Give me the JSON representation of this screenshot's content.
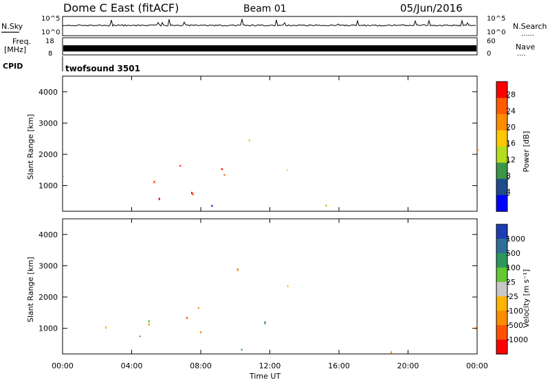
{
  "header": {
    "title": "Dome C East (fitACF)",
    "beam": "Beam 01",
    "date": "05/Jun/2016"
  },
  "status_panels": {
    "nsky_label": "N.Sky",
    "nsearch_label": "N.Search",
    "power_ticks": [
      "10^5",
      "10^0"
    ],
    "freq_label_1": "Freq.",
    "freq_label_2": "[MHz]",
    "freq_ticks": [
      "18",
      "8"
    ],
    "nave_label": "Nave",
    "nave_ticks": [
      "60",
      "0"
    ],
    "cpid_label": "CPID",
    "cpid_value": "twofsound 3501",
    "dots": "......",
    "dots_short": "...."
  },
  "chart_data": [
    {
      "type": "heatmap",
      "name": "power",
      "ylabel": "Slant Range [km]",
      "yticks": [
        "4000",
        "3000",
        "2000",
        "1000"
      ],
      "ylim": [
        180,
        4500
      ],
      "xlim": [
        0,
        24
      ],
      "colorbar": {
        "label": "Power [dB]",
        "ticks": [
          "28",
          "24",
          "20",
          "16",
          "12",
          "8",
          "4"
        ],
        "colors": [
          "#ff0000",
          "#ff5a00",
          "#ff8c00",
          "#ffc800",
          "#b4dc1e",
          "#3c9646",
          "#1e4b8c",
          "#0000ff"
        ]
      }
    },
    {
      "type": "heatmap",
      "name": "velocity",
      "ylabel": "Slant Range [km]",
      "yticks": [
        "4000",
        "3000",
        "2000",
        "1000"
      ],
      "ylim": [
        180,
        4500
      ],
      "xlim": [
        0,
        24
      ],
      "colorbar": {
        "label": "Velocity [m s⁻¹]",
        "ticks": [
          "1000",
          "500",
          "100",
          "25",
          "-25",
          "-100",
          "-500",
          "-1000"
        ],
        "colors": [
          "#1e3cb4",
          "#2d6e9b",
          "#2d965a",
          "#64c832",
          "#c8c8c8",
          "#ffb400",
          "#ff8c00",
          "#ff5000",
          "#ff0000"
        ]
      }
    }
  ],
  "xaxis": {
    "label": "Time UT",
    "ticks": [
      "00:00",
      "04:00",
      "08:00",
      "12:00",
      "16:00",
      "20:00",
      "00:00"
    ]
  }
}
